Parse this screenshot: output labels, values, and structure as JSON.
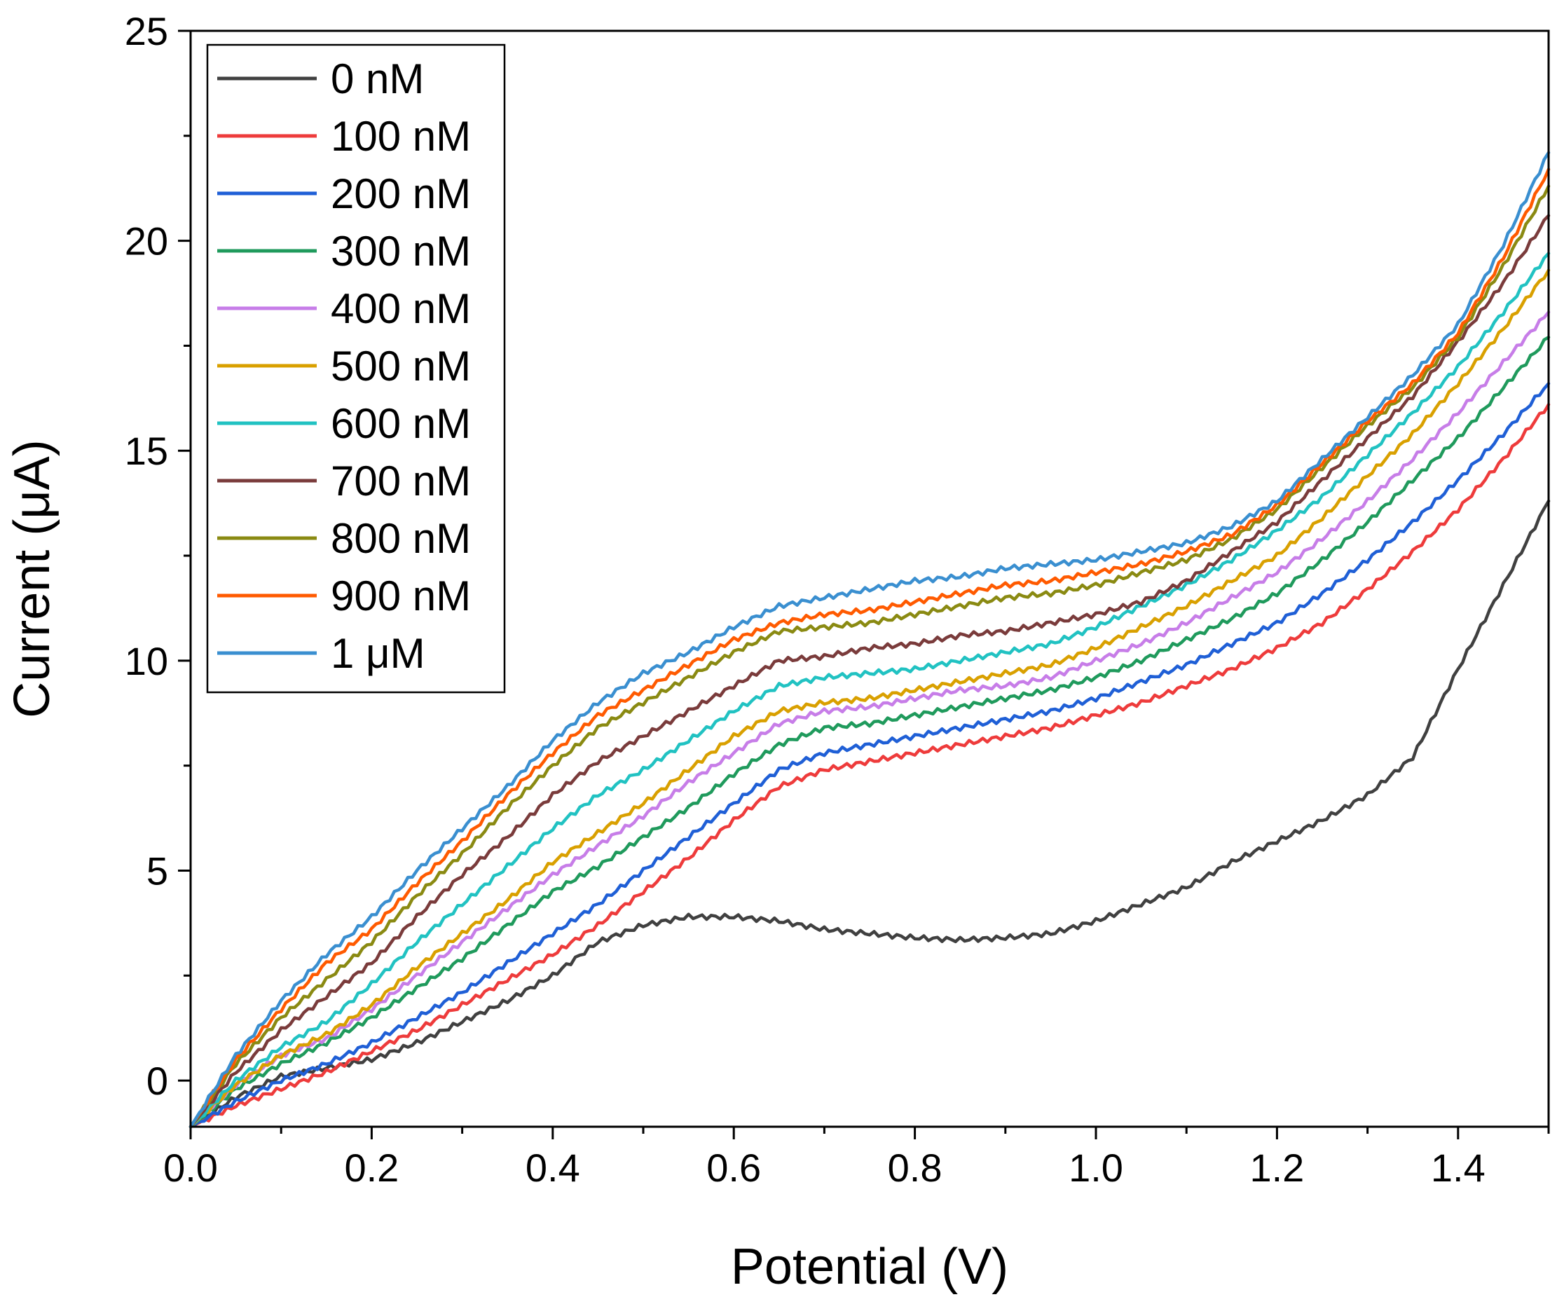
{
  "chart_data": {
    "type": "line",
    "title": "",
    "xlabel": "Potential (V)",
    "ylabel": "Current (μA)",
    "xlim": [
      0.0,
      1.5
    ],
    "ylim": [
      -1.1,
      25
    ],
    "xticks": [
      "0.0",
      "0.2",
      "0.4",
      "0.6",
      "0.8",
      "1.0",
      "1.2",
      "1.4"
    ],
    "xtick_values": [
      0.0,
      0.2,
      0.4,
      0.6,
      0.8,
      1.0,
      1.2,
      1.4
    ],
    "yticks": [
      "0",
      "5",
      "10",
      "15",
      "20",
      "25"
    ],
    "ytick_values": [
      0,
      5,
      10,
      15,
      20,
      25
    ],
    "grid": false,
    "legend_position": "top-left",
    "x": [
      0.0,
      0.05,
      0.1,
      0.15,
      0.2,
      0.25,
      0.3,
      0.35,
      0.4,
      0.45,
      0.5,
      0.55,
      0.6,
      0.65,
      0.7,
      0.75,
      0.8,
      0.85,
      0.9,
      0.95,
      1.0,
      1.05,
      1.1,
      1.15,
      1.2,
      1.25,
      1.3,
      1.35,
      1.4,
      1.45,
      1.5
    ],
    "series": [
      {
        "name": "0 nM",
        "color": "#404040",
        "values": [
          -1.1,
          -0.4,
          0.1,
          0.3,
          0.5,
          0.9,
          1.4,
          1.9,
          2.5,
          3.3,
          3.7,
          3.9,
          3.9,
          3.8,
          3.6,
          3.5,
          3.4,
          3.35,
          3.4,
          3.5,
          3.8,
          4.2,
          4.6,
          5.2,
          5.7,
          6.2,
          6.8,
          7.7,
          9.8,
          11.8,
          13.8
        ]
      },
      {
        "name": "100 nM",
        "color": "#ee3b3b",
        "values": [
          -1.1,
          -0.6,
          -0.2,
          0.2,
          0.7,
          1.2,
          1.8,
          2.4,
          3.0,
          3.7,
          4.5,
          5.3,
          6.2,
          7.0,
          7.4,
          7.6,
          7.8,
          8.0,
          8.2,
          8.4,
          8.7,
          9.0,
          9.4,
          9.8,
          10.3,
          10.9,
          11.7,
          12.6,
          13.6,
          14.8,
          16.1
        ]
      },
      {
        "name": "200 nM",
        "color": "#1f5fd6",
        "values": [
          -1.1,
          -0.5,
          0.0,
          0.4,
          0.9,
          1.5,
          2.1,
          2.8,
          3.5,
          4.2,
          5.0,
          5.8,
          6.6,
          7.4,
          7.8,
          8.0,
          8.2,
          8.4,
          8.6,
          8.8,
          9.1,
          9.5,
          9.9,
          10.4,
          10.9,
          11.6,
          12.4,
          13.3,
          14.3,
          15.4,
          16.6
        ]
      },
      {
        "name": "300 nM",
        "color": "#1f9a5c",
        "values": [
          -1.1,
          -0.2,
          0.4,
          0.9,
          1.5,
          2.2,
          2.9,
          3.7,
          4.5,
          5.1,
          5.8,
          6.5,
          7.3,
          8.0,
          8.4,
          8.5,
          8.7,
          8.9,
          9.1,
          9.3,
          9.6,
          10.0,
          10.5,
          11.0,
          11.6,
          12.4,
          13.3,
          14.3,
          15.3,
          16.5,
          17.7
        ]
      },
      {
        "name": "400 nM",
        "color": "#c77de8",
        "values": [
          -1.1,
          -0.1,
          0.6,
          1.0,
          1.7,
          2.5,
          3.3,
          4.1,
          4.9,
          5.6,
          6.3,
          7.1,
          7.8,
          8.5,
          8.8,
          8.9,
          9.1,
          9.3,
          9.4,
          9.6,
          10.0,
          10.4,
          10.9,
          11.5,
          12.1,
          12.9,
          13.8,
          14.8,
          15.9,
          17.1,
          18.3
        ]
      },
      {
        "name": "500 nM",
        "color": "#d9a000",
        "values": [
          -1.1,
          -0.1,
          0.6,
          1.1,
          1.8,
          2.7,
          3.5,
          4.3,
          5.2,
          5.9,
          6.6,
          7.4,
          8.2,
          8.8,
          9.0,
          9.1,
          9.3,
          9.5,
          9.7,
          9.9,
          10.3,
          10.8,
          11.3,
          11.9,
          12.5,
          13.4,
          14.4,
          15.4,
          16.6,
          17.9,
          19.3
        ]
      },
      {
        "name": "600 nM",
        "color": "#21c2c2",
        "values": [
          -1.1,
          0.0,
          0.8,
          1.4,
          2.3,
          3.3,
          4.2,
          5.1,
          6.0,
          6.8,
          7.4,
          8.1,
          8.8,
          9.4,
          9.6,
          9.7,
          9.8,
          10.0,
          10.2,
          10.4,
          10.8,
          11.3,
          11.8,
          12.4,
          13.1,
          13.9,
          14.9,
          15.9,
          17.0,
          18.3,
          19.7
        ]
      },
      {
        "name": "700 nM",
        "color": "#7a3b3b",
        "values": [
          -1.1,
          0.2,
          1.2,
          2.0,
          2.8,
          3.9,
          4.9,
          5.8,
          6.8,
          7.6,
          8.2,
          8.8,
          9.4,
          10.0,
          10.1,
          10.3,
          10.4,
          10.6,
          10.7,
          10.9,
          11.1,
          11.4,
          11.9,
          12.6,
          13.3,
          14.3,
          15.3,
          16.3,
          17.6,
          19.0,
          20.6
        ]
      },
      {
        "name": "800 nM",
        "color": "#8a8a12",
        "values": [
          -1.1,
          0.4,
          1.5,
          2.4,
          3.3,
          4.4,
          5.4,
          6.5,
          7.5,
          8.4,
          9.0,
          9.6,
          10.2,
          10.7,
          10.8,
          10.9,
          11.1,
          11.3,
          11.5,
          11.6,
          11.8,
          12.1,
          12.4,
          12.9,
          13.6,
          14.6,
          15.6,
          16.5,
          17.7,
          19.4,
          21.3
        ]
      },
      {
        "name": "900 nM",
        "color": "#ff5a00",
        "values": [
          -1.1,
          0.5,
          1.7,
          2.8,
          3.6,
          4.7,
          5.7,
          6.8,
          7.8,
          8.7,
          9.3,
          9.9,
          10.5,
          10.9,
          11.1,
          11.2,
          11.4,
          11.6,
          11.8,
          11.9,
          12.1,
          12.3,
          12.6,
          13.0,
          13.7,
          14.7,
          15.7,
          16.6,
          17.8,
          19.6,
          21.7
        ]
      },
      {
        "name": "1 μM",
        "color": "#3a8fd0",
        "values": [
          -1.1,
          0.6,
          1.9,
          3.0,
          3.9,
          5.0,
          6.0,
          7.0,
          8.1,
          9.0,
          9.7,
          10.2,
          10.8,
          11.3,
          11.5,
          11.7,
          11.9,
          12.0,
          12.2,
          12.3,
          12.4,
          12.6,
          12.8,
          13.2,
          13.8,
          14.8,
          15.8,
          16.8,
          18.0,
          19.9,
          22.1
        ]
      }
    ]
  }
}
